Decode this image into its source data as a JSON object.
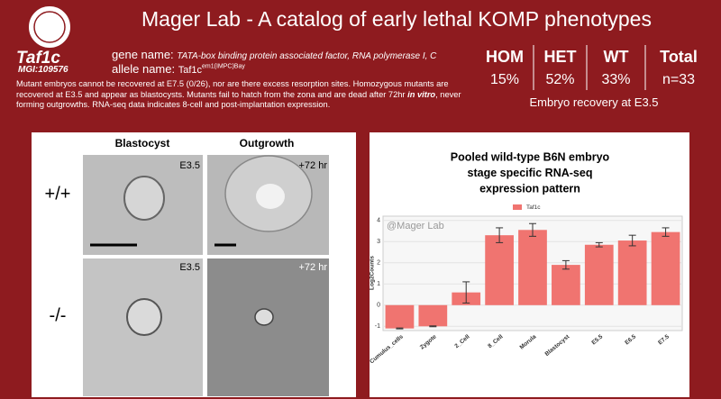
{
  "header": {
    "title": "Mager Lab - A catalog of early lethal KOMP phenotypes"
  },
  "gene": {
    "symbol": "Taf1c",
    "mgi": "MGI:109576",
    "gene_name_label": "gene name:",
    "gene_name": "TATA-box binding protein associated factor, RNA polymerase I, C",
    "allele_label": "allele name:",
    "allele": "Taf1c",
    "allele_sup": "em1(IMPC)Bay"
  },
  "description": {
    "before": "Mutant embryos cannot be recovered at E7.5 (0/26), nor are there excess resorption sites. Homozygous mutants are recovered at E3.5 and appear as blastocysts. Mutants fail to hatch from the zona and are dead after 72hr ",
    "emphasis": "in vitro",
    "after": ", never forming outgrowths. RNA-seq data indicates 8-cell and post-implantation expression."
  },
  "stats": {
    "columns": [
      {
        "header": "HOM",
        "value": "15%"
      },
      {
        "header": "HET",
        "value": "52%"
      },
      {
        "header": "WT",
        "value": "33%"
      },
      {
        "header": "Total",
        "value": "n=33"
      }
    ],
    "caption": "Embryo recovery at E3.5"
  },
  "images": {
    "col_headers": [
      "Blastocyst",
      "Outgrowth"
    ],
    "row_labels": [
      "+/+",
      "-/-"
    ],
    "panel_labels": [
      "E3.5",
      "+72 hr",
      "E3.5",
      "+72 hr"
    ]
  },
  "chart_data": {
    "type": "bar",
    "title": [
      "Pooled wild-type B6N embryo",
      "stage specific RNA-seq",
      "expression pattern"
    ],
    "y_label": "Log2Counts",
    "watermark": "@Mager Lab",
    "categories": [
      "Cumulus_cells",
      "Zygote",
      "2_Cell",
      "8_Cell",
      "Morula",
      "Blastocyst",
      "E5.5",
      "E6.5",
      "E7.5"
    ],
    "series": [
      {
        "name": "Taf1c",
        "color": "#f07470",
        "values": [
          -1.1,
          -1.0,
          0.6,
          3.3,
          3.55,
          1.9,
          2.85,
          3.05,
          3.45
        ],
        "errors": [
          0.02,
          0.02,
          0.5,
          0.35,
          0.3,
          0.2,
          0.1,
          0.25,
          0.2
        ]
      }
    ],
    "ylim": [
      -1.2,
      4.2
    ],
    "yticks": [
      -1,
      0,
      1,
      2,
      3,
      4
    ],
    "grid": true,
    "legend": "top"
  }
}
